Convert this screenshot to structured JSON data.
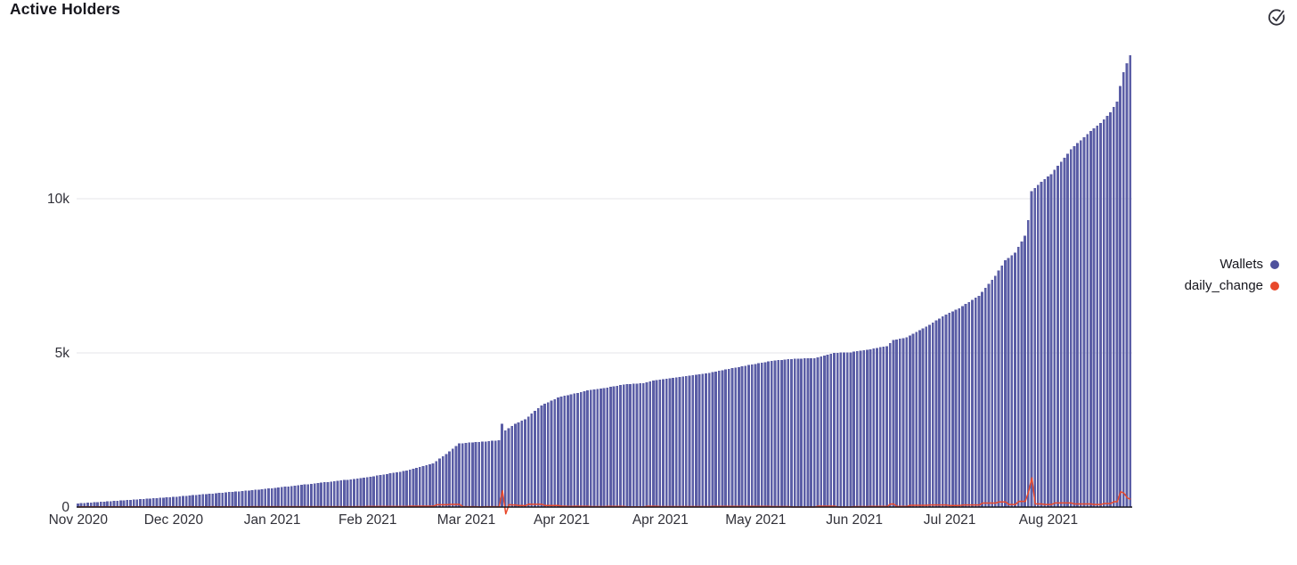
{
  "header": {
    "title": "Active Holders",
    "status_icon": "check-circle"
  },
  "legend": {
    "position": "right-middle",
    "items": [
      {
        "label": "Wallets",
        "color": "#4f519d",
        "kind": "bar"
      },
      {
        "label": "daily_change",
        "color": "#e8492c",
        "kind": "line"
      }
    ]
  },
  "colors": {
    "bar_fill": "#5b5ea6",
    "line_stroke": "#e8492c",
    "axis_line": "#16161d",
    "gridline": "#e4e4e8",
    "tick_text": "#303038",
    "title_text": "#16161d"
  },
  "chart_data": {
    "type": "combo",
    "title": "Active Holders",
    "grid": "horizontal gridlines at 5k and 10k, dark baseline axis at 0",
    "y_axis": {
      "range": [
        0,
        15000
      ],
      "ticks": [
        {
          "value": 0,
          "label": "0"
        },
        {
          "value": 5000,
          "label": "5k"
        },
        {
          "value": 10000,
          "label": "10k"
        }
      ]
    },
    "x_axis": {
      "tick_labels": [
        "Nov 2020",
        "Dec 2020",
        "Jan 2021",
        "Feb 2021",
        "Mar 2021",
        "Apr 2021",
        "Apr 2021",
        "May 2021",
        "Jun 2021",
        "Jul 2021",
        "Aug 2021"
      ],
      "tick_indices": [
        0,
        29,
        59,
        88,
        118,
        147,
        177,
        206,
        236,
        265,
        295
      ]
    },
    "bar_series": {
      "name": "Wallets",
      "color": "#5b5ea6",
      "values": [
        118,
        125,
        132,
        140,
        147,
        154,
        161,
        168,
        175,
        182,
        190,
        197,
        204,
        211,
        218,
        226,
        233,
        240,
        247,
        254,
        262,
        269,
        276,
        283,
        290,
        298,
        306,
        314,
        322,
        330,
        339,
        348,
        357,
        366,
        376,
        385,
        394,
        403,
        412,
        421,
        430,
        440,
        449,
        458,
        467,
        476,
        486,
        495,
        504,
        513,
        522,
        531,
        540,
        550,
        560,
        570,
        580,
        590,
        600,
        612,
        624,
        636,
        648,
        660,
        672,
        684,
        696,
        708,
        720,
        732,
        744,
        756,
        768,
        780,
        792,
        804,
        816,
        828,
        840,
        852,
        864,
        876,
        888,
        900,
        912,
        925,
        937,
        950,
        968,
        986,
        1004,
        1022,
        1040,
        1058,
        1076,
        1094,
        1112,
        1130,
        1148,
        1166,
        1184,
        1214,
        1244,
        1274,
        1304,
        1334,
        1363,
        1392,
        1420,
        1495,
        1570,
        1645,
        1720,
        1805,
        1890,
        1975,
        2060,
        2070,
        2080,
        2090,
        2100,
        2110,
        2115,
        2120,
        2130,
        2140,
        2150,
        2160,
        2170,
        2700,
        2480,
        2560,
        2630,
        2700,
        2750,
        2800,
        2845,
        2940,
        3030,
        3120,
        3210,
        3300,
        3350,
        3400,
        3450,
        3500,
        3550,
        3580,
        3610,
        3630,
        3650,
        3680,
        3705,
        3730,
        3755,
        3780,
        3795,
        3810,
        3825,
        3840,
        3855,
        3875,
        3895,
        3915,
        3935,
        3955,
        3975,
        3983,
        3991,
        3999,
        4007,
        4015,
        4023,
        4048,
        4073,
        4098,
        4123,
        4138,
        4153,
        4168,
        4183,
        4196,
        4209,
        4222,
        4235,
        4248,
        4261,
        4276,
        4291,
        4306,
        4321,
        4336,
        4351,
        4373,
        4395,
        4417,
        4439,
        4461,
        4483,
        4503,
        4523,
        4543,
        4563,
        4583,
        4603,
        4623,
        4643,
        4663,
        4683,
        4703,
        4723,
        4736,
        4749,
        4762,
        4775,
        4788,
        4801,
        4805,
        4809,
        4813,
        4817,
        4821,
        4825,
        4829,
        4833,
        4861,
        4889,
        4917,
        4945,
        4973,
        5001,
        5005,
        5009,
        5013,
        5017,
        5021,
        5037,
        5053,
        5069,
        5085,
        5101,
        5121,
        5141,
        5161,
        5181,
        5201,
        5221,
        5320,
        5420,
        5440,
        5460,
        5480,
        5500,
        5558,
        5616,
        5674,
        5732,
        5790,
        5848,
        5915,
        5982,
        6049,
        6116,
        6183,
        6250,
        6300,
        6350,
        6400,
        6450,
        6517,
        6584,
        6651,
        6718,
        6785,
        6852,
        6982,
        7112,
        7242,
        7372,
        7502,
        7668,
        7834,
        8000,
        8083,
        8166,
        8250,
        8433,
        8616,
        8800,
        9300,
        10250,
        10350,
        10450,
        10550,
        10633,
        10716,
        10800,
        10933,
        11066,
        11200,
        11333,
        11466,
        11600,
        11700,
        11800,
        11900,
        12000,
        12100,
        12200,
        12283,
        12366,
        12450,
        12566,
        12683,
        12800,
        12975,
        13150,
        13650,
        14100,
        14400,
        14650
      ]
    },
    "line_series": {
      "name": "daily_change",
      "color": "#e8492c",
      "derived": "day-over-day difference of Wallets values, first point 0"
    }
  }
}
